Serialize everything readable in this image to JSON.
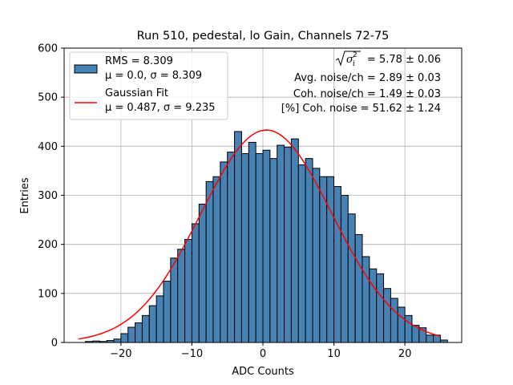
{
  "chart_data": {
    "type": "bar",
    "title": "Run 510, pedestal, lo Gain, Channels 72-75",
    "xlabel": "ADC Counts",
    "ylabel": "Entries",
    "xlim": [
      -28,
      28
    ],
    "ylim": [
      0,
      600
    ],
    "xticks": [
      -20,
      -10,
      0,
      10,
      20
    ],
    "yticks": [
      0,
      100,
      200,
      300,
      400,
      500,
      600
    ],
    "xtick_labels": [
      "−20",
      "−10",
      "0",
      "10",
      "20"
    ],
    "ytick_labels": [
      "0",
      "100",
      "200",
      "300",
      "400",
      "500",
      "600"
    ],
    "grid": true,
    "legend_position": "top-left",
    "histogram": {
      "bin_start": -25,
      "bin_width": 1,
      "color": "#4682b4",
      "edge_color": "#000000",
      "values": [
        2,
        3,
        2,
        4,
        7,
        18,
        31,
        40,
        55,
        75,
        95,
        125,
        172,
        190,
        210,
        242,
        282,
        328,
        338,
        368,
        388,
        430,
        385,
        408,
        385,
        392,
        375,
        402,
        398,
        415,
        362,
        375,
        355,
        338,
        338,
        318,
        300,
        262,
        220,
        175,
        150,
        140,
        110,
        90,
        72,
        55,
        35,
        30,
        15,
        15,
        5
      ]
    },
    "fit": {
      "color": "#ff0000",
      "amplitude": 433,
      "mu": 0.487,
      "sigma": 9.235,
      "x_range": [
        -26,
        25
      ]
    },
    "legend": [
      {
        "line1": "RMS = 8.309",
        "line2": "μ = 0.0, σ = 8.309"
      },
      {
        "line1": "Gaussian Fit",
        "line2": "μ = 0.487, σ = 9.235"
      }
    ],
    "stats": [
      "= 5.78 ± 0.06",
      "Avg. noise/ch = 2.89 ± 0.03",
      "Coh. noise/ch = 1.49 ± 0.03",
      "[%] Coh. noise = 51.62 ± 1.24"
    ]
  }
}
